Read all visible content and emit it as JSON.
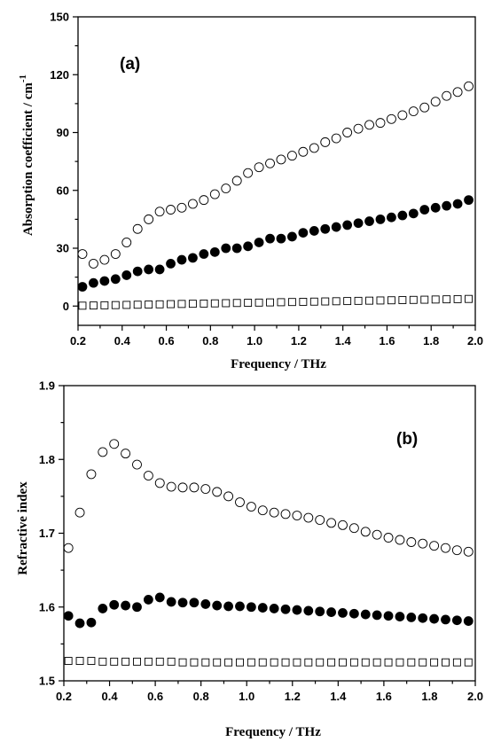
{
  "chart_data": [
    {
      "type": "scatter",
      "panel_label": "(a)",
      "title": "",
      "xlabel": "Frequency / THz",
      "ylabel": "Absorption coefficient / cm",
      "ylabel_superscript": "-1",
      "xlim": [
        0.2,
        2.0
      ],
      "ylim": [
        -10,
        150
      ],
      "xticks": [
        0.2,
        0.4,
        0.6,
        0.8,
        1.0,
        1.2,
        1.4,
        1.6,
        1.8,
        2.0
      ],
      "xtick_labels": [
        "0.2",
        "0.4",
        "0.6",
        "0.8",
        "1.0",
        "1.2",
        "1.4",
        "1.6",
        "1.8",
        "2.0"
      ],
      "yticks": [
        0,
        30,
        60,
        90,
        120,
        150
      ],
      "ytick_labels": [
        "0",
        "30",
        "60",
        "90",
        "120",
        "150"
      ],
      "grid": false,
      "legend": "none",
      "series": [
        {
          "marker": "open-circle",
          "x": [
            0.22,
            0.27,
            0.32,
            0.37,
            0.42,
            0.47,
            0.52,
            0.57,
            0.62,
            0.67,
            0.72,
            0.77,
            0.82,
            0.87,
            0.92,
            0.97,
            1.02,
            1.07,
            1.12,
            1.17,
            1.22,
            1.27,
            1.32,
            1.37,
            1.42,
            1.47,
            1.52,
            1.57,
            1.62,
            1.67,
            1.72,
            1.77,
            1.82,
            1.87,
            1.92,
            1.97
          ],
          "y": [
            27,
            22,
            24,
            27,
            33,
            40,
            45,
            49,
            50,
            51,
            53,
            55,
            58,
            61,
            65,
            69,
            72,
            74,
            76,
            78,
            80,
            82,
            85,
            87,
            90,
            92,
            94,
            95,
            97,
            99,
            101,
            103,
            106,
            109,
            111,
            114
          ]
        },
        {
          "marker": "filled-circle",
          "x": [
            0.22,
            0.27,
            0.32,
            0.37,
            0.42,
            0.47,
            0.52,
            0.57,
            0.62,
            0.67,
            0.72,
            0.77,
            0.82,
            0.87,
            0.92,
            0.97,
            1.02,
            1.07,
            1.12,
            1.17,
            1.22,
            1.27,
            1.32,
            1.37,
            1.42,
            1.47,
            1.52,
            1.57,
            1.62,
            1.67,
            1.72,
            1.77,
            1.82,
            1.87,
            1.92,
            1.97
          ],
          "y": [
            10,
            12,
            13,
            14,
            16,
            18,
            19,
            19,
            22,
            24,
            25,
            27,
            28,
            30,
            30,
            31,
            33,
            35,
            35,
            36,
            38,
            39,
            40,
            41,
            42,
            43,
            44,
            45,
            46,
            47,
            48,
            50,
            51,
            52,
            53,
            55
          ]
        },
        {
          "marker": "open-square",
          "x": [
            0.22,
            0.27,
            0.32,
            0.37,
            0.42,
            0.47,
            0.52,
            0.57,
            0.62,
            0.67,
            0.72,
            0.77,
            0.82,
            0.87,
            0.92,
            0.97,
            1.02,
            1.07,
            1.12,
            1.17,
            1.22,
            1.27,
            1.32,
            1.37,
            1.42,
            1.47,
            1.52,
            1.57,
            1.62,
            1.67,
            1.72,
            1.77,
            1.82,
            1.87,
            1.92,
            1.97
          ],
          "y": [
            0.2,
            0.3,
            0.4,
            0.5,
            0.6,
            0.7,
            0.8,
            0.9,
            1.0,
            1.1,
            1.2,
            1.3,
            1.4,
            1.5,
            1.6,
            1.7,
            1.8,
            1.9,
            2.0,
            2.1,
            2.2,
            2.3,
            2.4,
            2.5,
            2.6,
            2.7,
            2.8,
            2.9,
            3.0,
            3.1,
            3.2,
            3.3,
            3.4,
            3.5,
            3.6,
            3.7
          ]
        }
      ]
    },
    {
      "type": "scatter",
      "panel_label": "(b)",
      "title": "",
      "xlabel": "Frequency / THz",
      "ylabel": "Refractive index",
      "xlim": [
        0.2,
        2.0
      ],
      "ylim": [
        1.5,
        1.9
      ],
      "xticks": [
        0.2,
        0.4,
        0.6,
        0.8,
        1.0,
        1.2,
        1.4,
        1.6,
        1.8,
        2.0
      ],
      "xtick_labels": [
        "0.2",
        "0.4",
        "0.6",
        "0.8",
        "1.0",
        "1.2",
        "1.4",
        "1.6",
        "1.8",
        "2.0"
      ],
      "yticks": [
        1.5,
        1.6,
        1.7,
        1.8,
        1.9
      ],
      "ytick_labels": [
        "1.5",
        "1.6",
        "1.7",
        "1.8",
        "1.9"
      ],
      "grid": false,
      "legend": "none",
      "series": [
        {
          "marker": "open-circle",
          "x": [
            0.22,
            0.27,
            0.32,
            0.37,
            0.42,
            0.47,
            0.52,
            0.57,
            0.62,
            0.67,
            0.72,
            0.77,
            0.82,
            0.87,
            0.92,
            0.97,
            1.02,
            1.07,
            1.12,
            1.17,
            1.22,
            1.27,
            1.32,
            1.37,
            1.42,
            1.47,
            1.52,
            1.57,
            1.62,
            1.67,
            1.72,
            1.77,
            1.82,
            1.87,
            1.92,
            1.97
          ],
          "y": [
            1.68,
            1.728,
            1.78,
            1.81,
            1.821,
            1.808,
            1.793,
            1.778,
            1.768,
            1.763,
            1.762,
            1.762,
            1.76,
            1.756,
            1.75,
            1.742,
            1.736,
            1.731,
            1.728,
            1.726,
            1.724,
            1.721,
            1.718,
            1.714,
            1.711,
            1.707,
            1.702,
            1.698,
            1.694,
            1.691,
            1.688,
            1.686,
            1.683,
            1.68,
            1.677,
            1.675
          ]
        },
        {
          "marker": "filled-circle",
          "x": [
            0.22,
            0.27,
            0.32,
            0.37,
            0.42,
            0.47,
            0.52,
            0.57,
            0.62,
            0.67,
            0.72,
            0.77,
            0.82,
            0.87,
            0.92,
            0.97,
            1.02,
            1.07,
            1.12,
            1.17,
            1.22,
            1.27,
            1.32,
            1.37,
            1.42,
            1.47,
            1.52,
            1.57,
            1.62,
            1.67,
            1.72,
            1.77,
            1.82,
            1.87,
            1.92,
            1.97
          ],
          "y": [
            1.588,
            1.578,
            1.579,
            1.598,
            1.603,
            1.602,
            1.6,
            1.61,
            1.613,
            1.607,
            1.606,
            1.606,
            1.604,
            1.602,
            1.601,
            1.601,
            1.6,
            1.599,
            1.598,
            1.597,
            1.596,
            1.595,
            1.594,
            1.593,
            1.592,
            1.591,
            1.59,
            1.589,
            1.588,
            1.587,
            1.586,
            1.585,
            1.584,
            1.583,
            1.582,
            1.581
          ]
        },
        {
          "marker": "open-square",
          "x": [
            0.22,
            0.27,
            0.32,
            0.37,
            0.42,
            0.47,
            0.52,
            0.57,
            0.62,
            0.67,
            0.72,
            0.77,
            0.82,
            0.87,
            0.92,
            0.97,
            1.02,
            1.07,
            1.12,
            1.17,
            1.22,
            1.27,
            1.32,
            1.37,
            1.42,
            1.47,
            1.52,
            1.57,
            1.62,
            1.67,
            1.72,
            1.77,
            1.82,
            1.87,
            1.92,
            1.97
          ],
          "y": [
            1.527,
            1.527,
            1.527,
            1.526,
            1.526,
            1.526,
            1.526,
            1.526,
            1.526,
            1.526,
            1.525,
            1.525,
            1.525,
            1.525,
            1.525,
            1.525,
            1.525,
            1.525,
            1.525,
            1.525,
            1.525,
            1.525,
            1.525,
            1.525,
            1.525,
            1.525,
            1.525,
            1.525,
            1.525,
            1.525,
            1.525,
            1.525,
            1.525,
            1.525,
            1.525,
            1.525
          ]
        }
      ]
    }
  ]
}
